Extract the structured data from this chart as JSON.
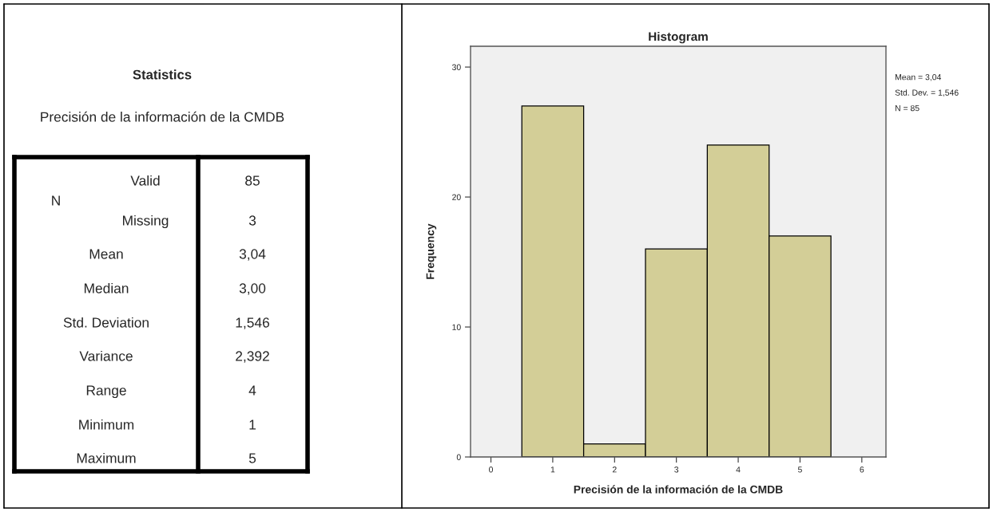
{
  "chart_data": [
    {
      "type": "other",
      "title": "Statistics",
      "subtitle": "Precisión de la información de la CMDB",
      "annotations": [
        "N",
        "Valid",
        "85",
        "Missing",
        "3",
        "Mean",
        "3,04",
        "Median",
        "3,00",
        "Std. Deviation",
        "1,546",
        "Variance",
        "2,392",
        "Range",
        "4",
        "Minimum",
        "1",
        "Maximum",
        "5"
      ]
    },
    {
      "type": "histogram",
      "title": "Histogram",
      "xlabel": "Precisión de la información de la CMDB",
      "ylabel": "Frequency",
      "bins": [
        0.5,
        1.5,
        2.5,
        3.5,
        4.5,
        5.5
      ],
      "values": [
        27,
        1,
        16,
        24,
        17
      ],
      "color": "#d3ce97",
      "xlim": [
        -0.33,
        6.39
      ],
      "xticks": [
        0,
        1,
        2,
        3,
        4,
        5,
        6
      ],
      "ylim": [
        0,
        31.6
      ],
      "yticks": [
        0,
        10,
        20,
        30
      ],
      "grid": false,
      "legend": false,
      "annotations": [
        "Mean = 3,04",
        "Std. Dev. = 1,546",
        "N = 85"
      ]
    }
  ]
}
